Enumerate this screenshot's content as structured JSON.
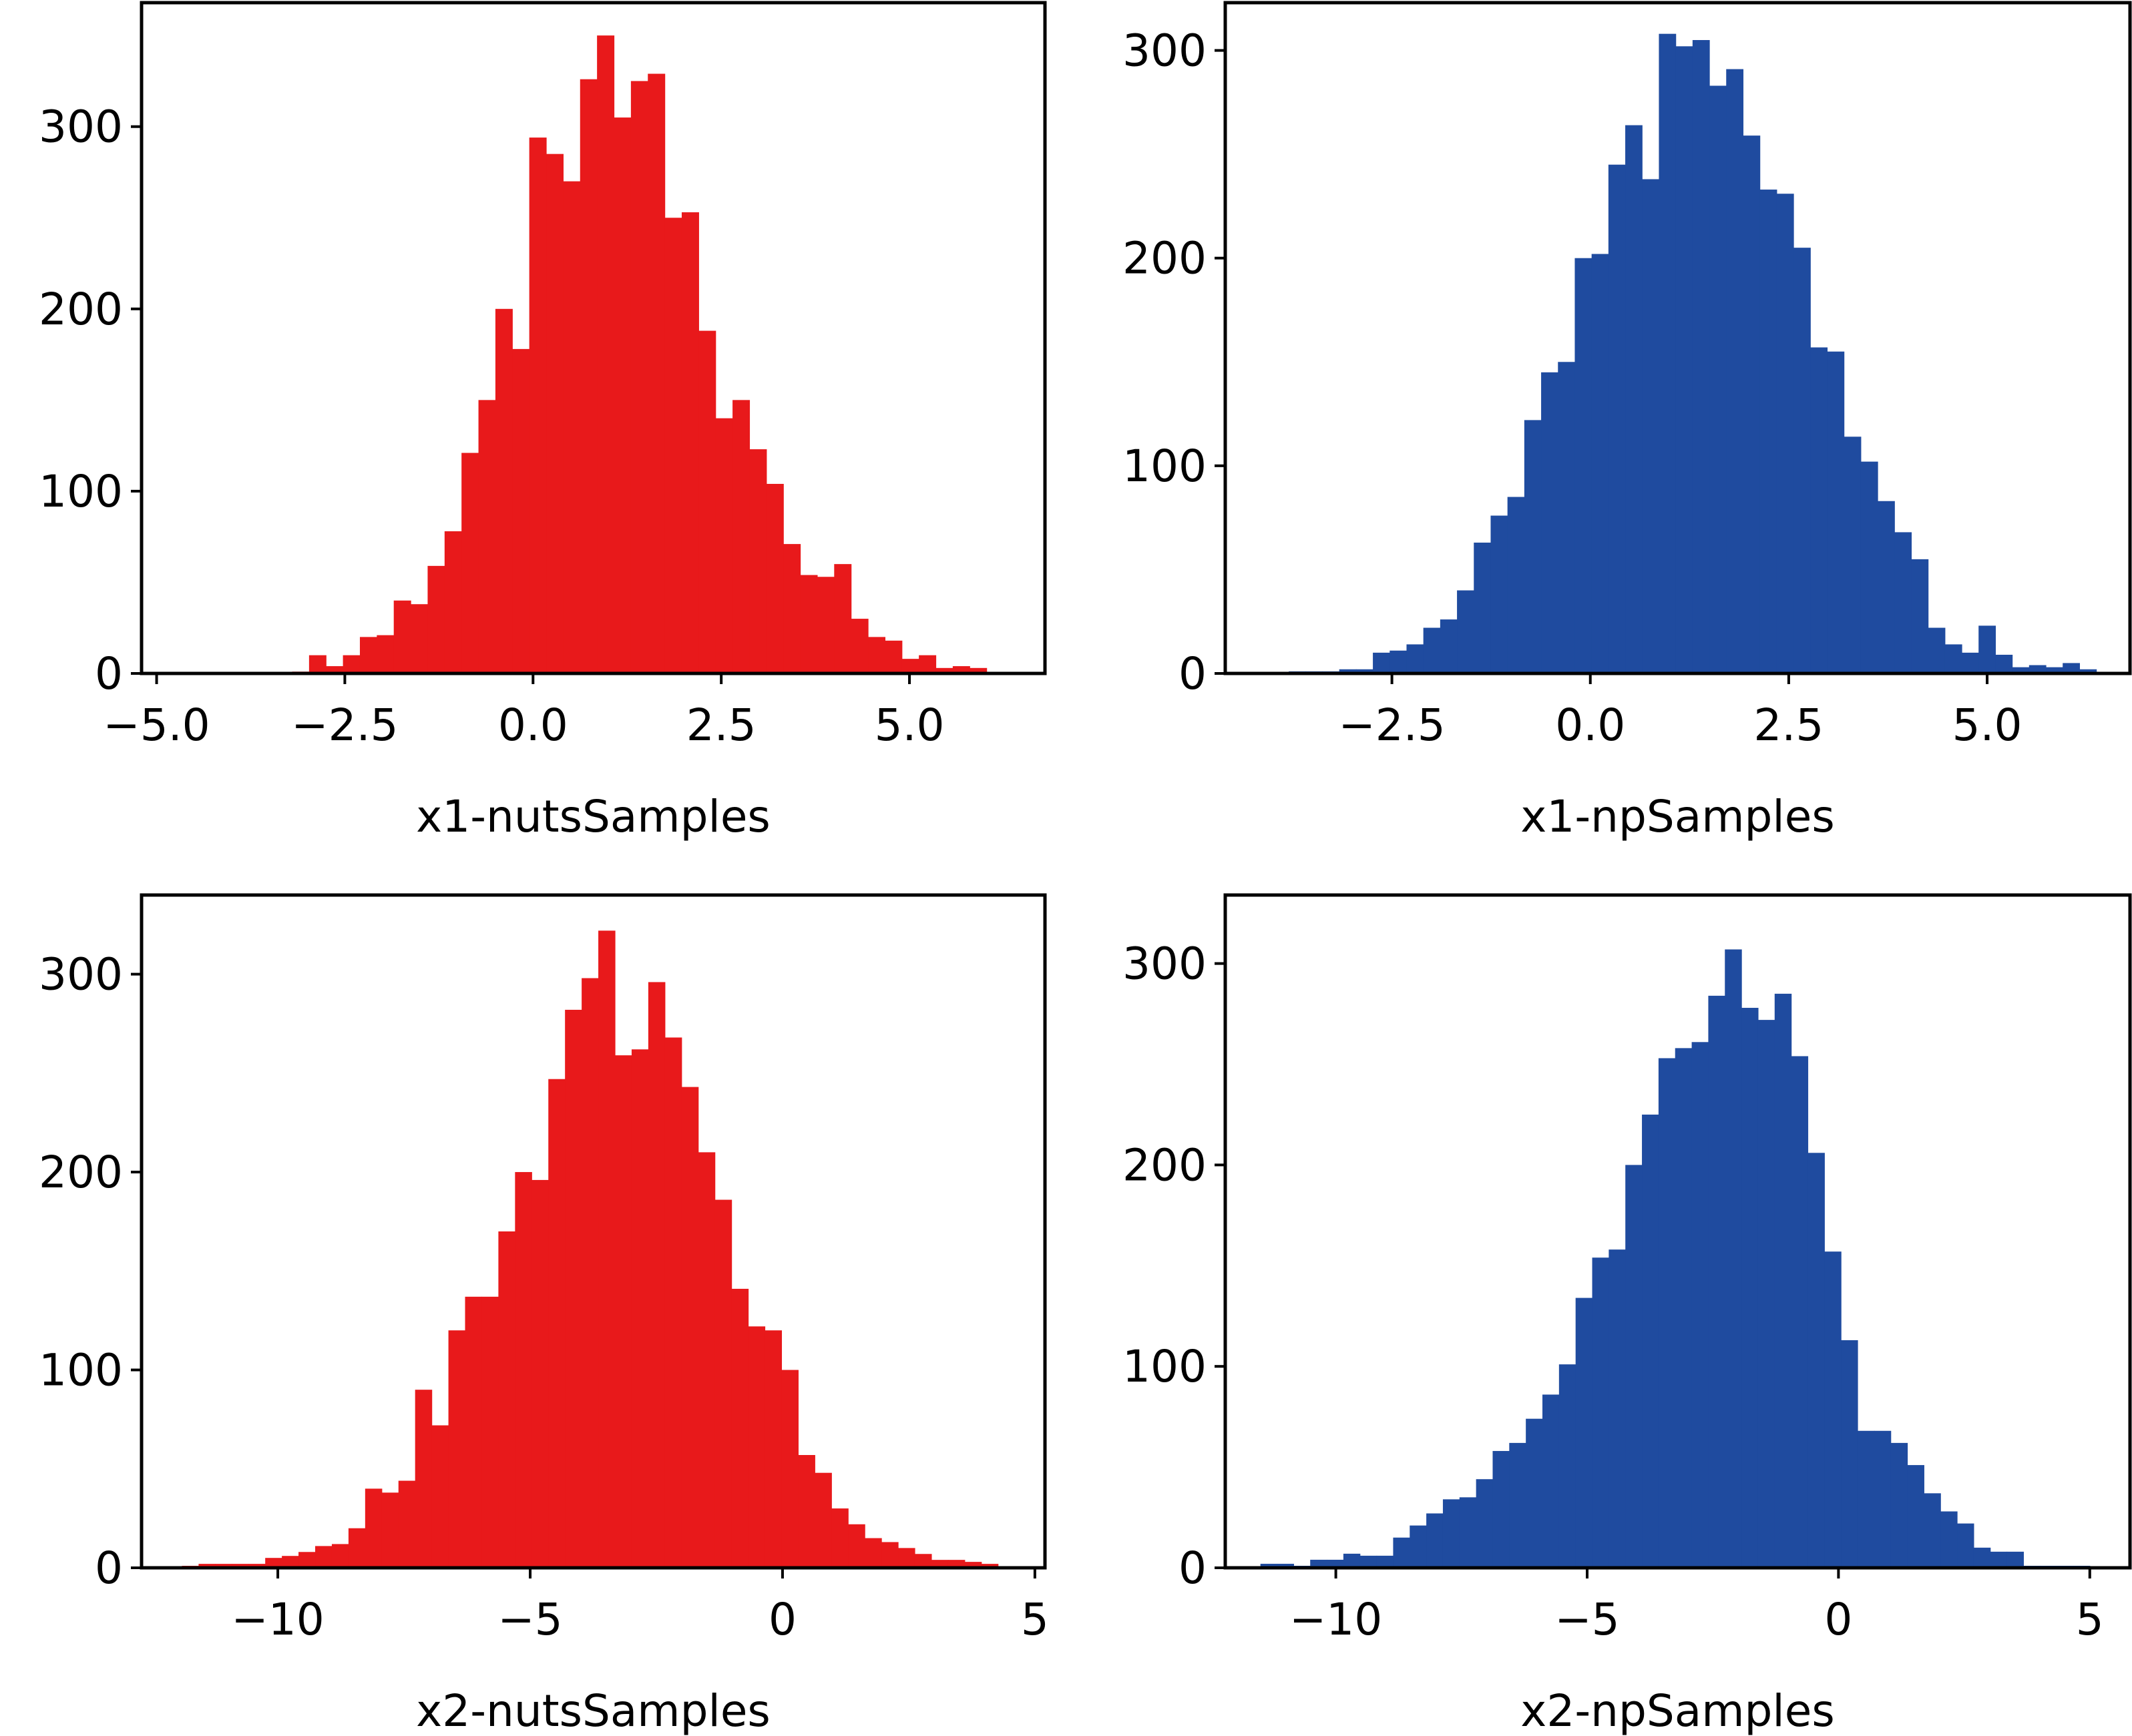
{
  "figure": {
    "layout": "2x2 grid of histograms"
  },
  "chart_data": [
    {
      "type": "bar",
      "panel": "top-left",
      "xlabel": "x1-nutsSamples",
      "ylabel": "",
      "color": "#e8191b",
      "xlim": [
        -5.2,
        6.8
      ],
      "ylim": [
        0,
        368
      ],
      "xticks": [
        -5.0,
        -2.5,
        0.0,
        2.5,
        5.0
      ],
      "xtick_labels": [
        "−5.0",
        "−2.5",
        "0.0",
        "2.5",
        "5.0"
      ],
      "yticks": [
        0,
        100,
        200,
        300
      ],
      "ytick_labels": [
        "0",
        "100",
        "200",
        "300"
      ],
      "bin_start": -3.2,
      "bin_width": 0.225,
      "values": [
        1,
        10,
        4,
        10,
        20,
        21,
        40,
        38,
        59,
        78,
        121,
        150,
        200,
        178,
        294,
        285,
        270,
        326,
        350,
        305,
        325,
        329,
        250,
        253,
        188,
        140,
        150,
        123,
        104,
        71,
        54,
        53,
        60,
        30,
        20,
        18,
        8,
        10,
        3,
        4,
        3
      ]
    },
    {
      "type": "bar",
      "panel": "top-right",
      "xlabel": "x1-npSamples",
      "ylabel": "",
      "color": "#1f4b9f",
      "xlim": [
        -4.6,
        6.8
      ],
      "ylim": [
        0,
        323
      ],
      "xticks": [
        -2.5,
        0.0,
        2.5,
        5.0
      ],
      "xtick_labels": [
        "−2.5",
        "0.0",
        "2.5",
        "5.0"
      ],
      "yticks": [
        0,
        100,
        200,
        300
      ],
      "ytick_labels": [
        "0",
        "100",
        "200",
        "300"
      ],
      "bin_start": -3.8,
      "bin_width": 0.212,
      "values": [
        1,
        1,
        1,
        2,
        2,
        10,
        11,
        14,
        22,
        26,
        40,
        63,
        76,
        85,
        122,
        145,
        150,
        200,
        202,
        245,
        264,
        238,
        308,
        302,
        305,
        283,
        291,
        259,
        233,
        231,
        205,
        157,
        155,
        114,
        102,
        83,
        68,
        55,
        22,
        14,
        10,
        23,
        9,
        3,
        4,
        3,
        5,
        2
      ]
    },
    {
      "type": "bar",
      "panel": "bottom-left",
      "xlabel": "x2-nutsSamples",
      "ylabel": "",
      "color": "#e8191b",
      "xlim": [
        -12.7,
        5.2
      ],
      "ylim": [
        0,
        340
      ],
      "xticks": [
        -10,
        -5,
        0,
        5
      ],
      "xtick_labels": [
        "−10",
        "−5",
        "0",
        "5"
      ],
      "yticks": [
        0,
        100,
        200,
        300
      ],
      "ytick_labels": [
        "0",
        "100",
        "200",
        "300"
      ],
      "bin_start": -11.9,
      "bin_width": 0.33,
      "values": [
        1,
        2,
        2,
        2,
        2,
        5,
        6,
        8,
        11,
        12,
        20,
        40,
        38,
        44,
        90,
        72,
        120,
        137,
        137,
        170,
        200,
        196,
        247,
        282,
        298,
        322,
        259,
        262,
        296,
        268,
        243,
        210,
        186,
        141,
        122,
        120,
        100,
        57,
        48,
        30,
        22,
        15,
        13,
        10,
        7,
        4,
        4,
        3,
        2
      ]
    },
    {
      "type": "bar",
      "panel": "bottom-right",
      "xlabel": "x2-npSamples",
      "ylabel": "",
      "color": "#1f4b9f",
      "xlim": [
        -12.2,
        5.8
      ],
      "ylim": [
        0,
        334
      ],
      "xticks": [
        -10,
        -5,
        0,
        5
      ],
      "xtick_labels": [
        "−10",
        "−5",
        "0",
        "5"
      ],
      "yticks": [
        0,
        100,
        200,
        300
      ],
      "ytick_labels": [
        "0",
        "100",
        "200",
        "300"
      ],
      "bin_start": -11.5,
      "bin_width": 0.33,
      "values": [
        2,
        2,
        1,
        4,
        4,
        7,
        6,
        6,
        15,
        21,
        27,
        34,
        35,
        44,
        58,
        62,
        74,
        86,
        101,
        134,
        154,
        158,
        200,
        225,
        253,
        258,
        261,
        284,
        307,
        278,
        272,
        285,
        254,
        206,
        157,
        113,
        68,
        68,
        62,
        51,
        37,
        28,
        22,
        10,
        8,
        8,
        1,
        1,
        1,
        1
      ]
    }
  ]
}
